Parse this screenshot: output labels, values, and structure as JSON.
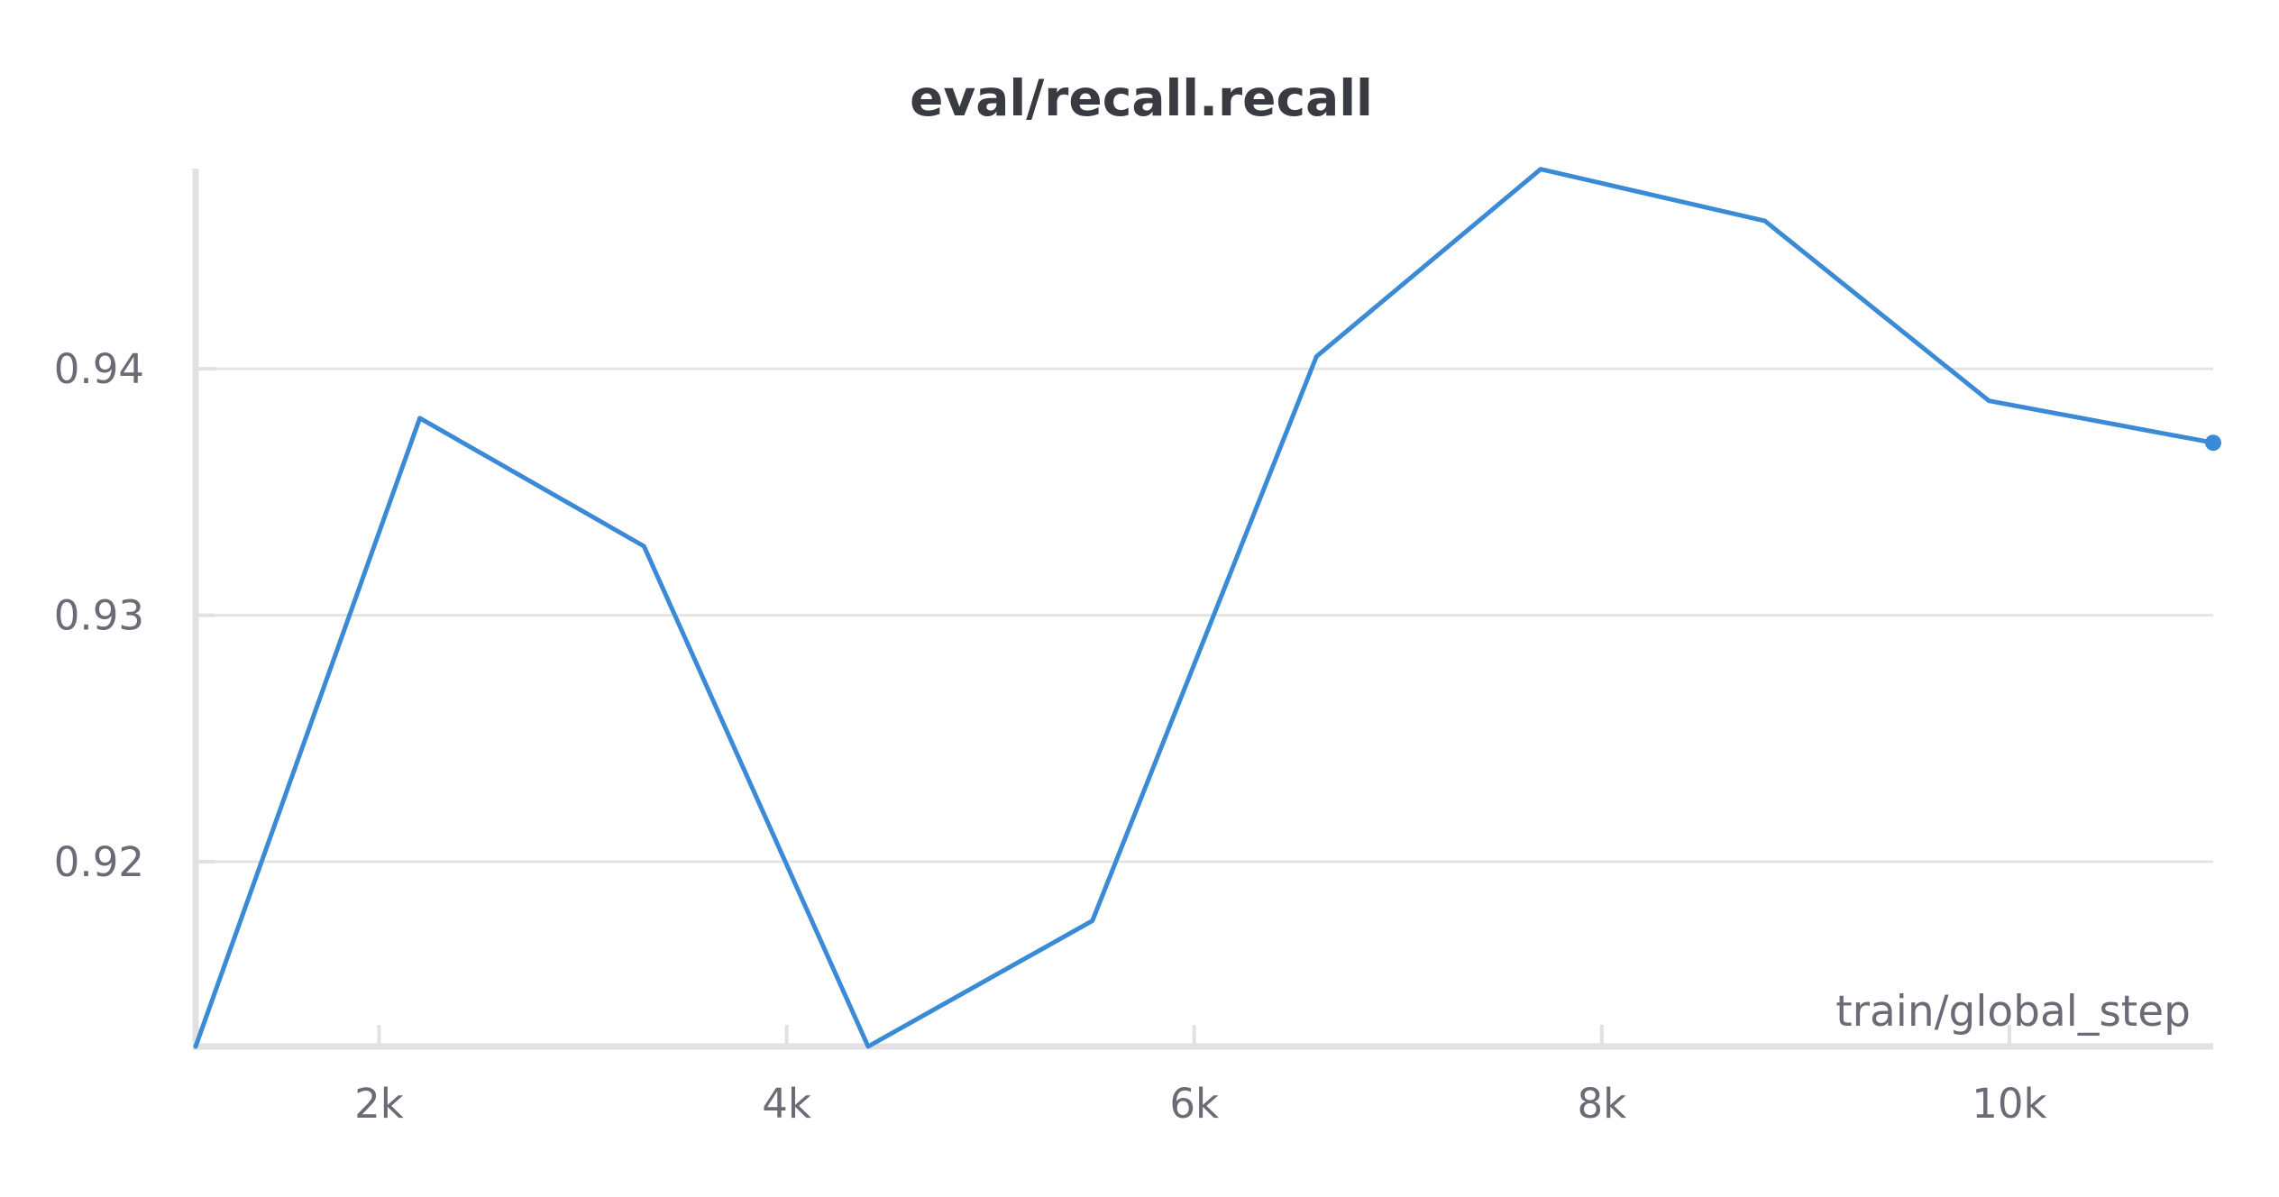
{
  "chart_data": {
    "type": "line",
    "title": "eval/recall.recall",
    "xlabel": "train/global_step",
    "ylabel": "",
    "x_ticks": [
      {
        "value": 2000,
        "label": "2k"
      },
      {
        "value": 4000,
        "label": "4k"
      },
      {
        "value": 6000,
        "label": "6k"
      },
      {
        "value": 8000,
        "label": "8k"
      },
      {
        "value": 10000,
        "label": "10k"
      }
    ],
    "y_ticks": [
      {
        "value": 0.92,
        "label": "0.92"
      },
      {
        "value": 0.93,
        "label": "0.93"
      },
      {
        "value": 0.94,
        "label": "0.94"
      }
    ],
    "xlim": [
      1100,
      11000
    ],
    "ylim": [
      0.9125,
      0.9482
    ],
    "grid": true,
    "color": "#3a8ad6",
    "series": [
      {
        "x": [
          1100,
          2200,
          3300,
          4400,
          5500,
          6600,
          7700,
          8800,
          9900,
          11000
        ],
        "y": [
          0.9125,
          0.938,
          0.9328,
          0.9125,
          0.9176,
          0.9405,
          0.9481,
          0.946,
          0.9387,
          0.937
        ]
      }
    ]
  }
}
